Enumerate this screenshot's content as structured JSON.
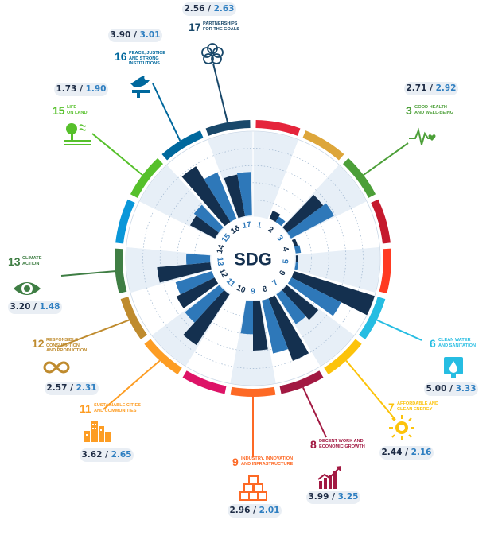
{
  "chart_data": {
    "type": "radial-bar",
    "center_label": "SDG",
    "series": [
      {
        "name": "",
        "color": "#14304f"
      },
      {
        "name": "",
        "color": "#2e78b9"
      }
    ],
    "goals": [
      {
        "num": "1",
        "color": "#e5243b",
        "values": [
          null,
          null
        ],
        "label_a": "",
        "label_b": ""
      },
      {
        "num": "2",
        "color": "#dda63a",
        "values": [
          0.6,
          0.45
        ],
        "label_a": "",
        "label_b": ""
      },
      {
        "num": "3",
        "color": "#4c9f38",
        "values": [
          2.71,
          2.92
        ],
        "label_a": "2.71",
        "label_b": "2.92",
        "name": "GOOD HEALTH\nAND WELL-BEING"
      },
      {
        "num": "4",
        "color": "#c5192d",
        "values": [
          0.3,
          0.4
        ],
        "label_a": "",
        "label_b": ""
      },
      {
        "num": "5",
        "color": "#ff3a21",
        "values": [
          0.2,
          0.25
        ],
        "label_a": "",
        "label_b": ""
      },
      {
        "num": "6",
        "color": "#26bde2",
        "values": [
          5.0,
          3.33
        ],
        "label_a": "5.00",
        "label_b": "3.33",
        "name": "CLEAN WATER\nAND SANITATION"
      },
      {
        "num": "7",
        "color": "#fcc30b",
        "values": [
          2.44,
          2.16
        ],
        "label_a": "2.44",
        "label_b": "2.16",
        "name": "AFFORDABLE AND\nCLEAN ENERGY"
      },
      {
        "num": "8",
        "color": "#a21942",
        "values": [
          3.99,
          3.25
        ],
        "label_a": "3.99",
        "label_b": "3.25",
        "name": "DECENT WORK AND\nECONOMIC GROWTH"
      },
      {
        "num": "9",
        "color": "#fd6925",
        "values": [
          2.96,
          2.01
        ],
        "label_a": "2.96",
        "label_b": "2.01",
        "name": "INDUSTRY, INNOVATION\nAND INFRASTRUCTURE"
      },
      {
        "num": "10",
        "color": "#dd1367",
        "values": [
          null,
          null
        ],
        "label_a": "",
        "label_b": ""
      },
      {
        "num": "11",
        "color": "#fd9d24",
        "values": [
          3.62,
          2.65
        ],
        "label_a": "3.62",
        "label_b": "2.65",
        "name": "SUSTAINABLE CITIES\nAND COMMUNITIES"
      },
      {
        "num": "12",
        "color": "#bf8b2e",
        "values": [
          2.57,
          2.31
        ],
        "label_a": "2.57",
        "label_b": "2.31",
        "name": "RESPONSIBLE\nCONSUMPTION\nAND PRODUCTION"
      },
      {
        "num": "13",
        "color": "#3f7e44",
        "values": [
          3.2,
          1.48
        ],
        "label_a": "3.20",
        "label_b": "1.48",
        "name": "CLIMATE\nACTION"
      },
      {
        "num": "14",
        "color": "#0a97d9",
        "values": [
          null,
          null
        ],
        "label_a": "",
        "label_b": ""
      },
      {
        "num": "15",
        "color": "#56c02b",
        "values": [
          1.73,
          1.9
        ],
        "label_a": "1.73",
        "label_b": "1.90",
        "name": "LIFE\nON LAND"
      },
      {
        "num": "16",
        "color": "#00689d",
        "values": [
          3.9,
          3.01
        ],
        "label_a": "3.90",
        "label_b": "3.01",
        "name": "PEACE, JUSTICE\nAND STRONG\nINSTITUTIONS"
      },
      {
        "num": "17",
        "color": "#19486a",
        "values": [
          2.56,
          2.63
        ],
        "label_a": "2.56",
        "label_b": "2.63",
        "name": "PARTNERSHIPS\nFOR THE GOALS"
      }
    ],
    "r_range": [
      0,
      5
    ],
    "grid": true
  }
}
